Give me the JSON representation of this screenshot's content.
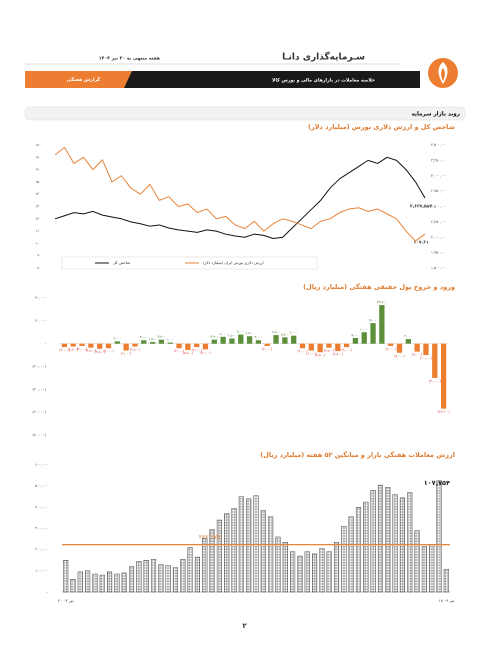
{
  "header": {
    "company": "سـرمایه‌گذاری دانـا",
    "date": "هفته منتهی به ۲۰ تیر ۱۴۰۴",
    "subtitle": "خلاصه معاملات در بازارهای مالی و بورس کالا",
    "tab": "گزارش هفتگی"
  },
  "section_title": "روند بازار سرمایه",
  "chart_data": [
    {
      "type": "line",
      "title": "شاخص کل و ارزش دلاری بورس (میلیارد دلار)",
      "ylim": [
        80,
        180
      ],
      "yticks": [
        {
          "value": 180,
          "label": "۱۸۰"
        },
        {
          "value": 170,
          "label": "۱۷۰"
        },
        {
          "value": 160,
          "label": "۱۶۰"
        },
        {
          "value": 150,
          "label": "۱۵۰"
        },
        {
          "value": 140,
          "label": "۱۴۰"
        },
        {
          "value": 130,
          "label": "۱۳۰"
        },
        {
          "value": 120,
          "label": "۱۲۰"
        },
        {
          "value": 110,
          "label": "۱۱۰"
        },
        {
          "value": 100,
          "label": "۱۰۰"
        },
        {
          "value": 90,
          "label": "۹۰"
        },
        {
          "value": 80,
          "label": "۸۰"
        }
      ],
      "y2lim": [
        1500000,
        3500000
      ],
      "y2ticks": [
        {
          "value": 3500000,
          "label": "۳,۵۰۰,۰۰۰"
        },
        {
          "value": 3250000,
          "label": "۳,۲۵۰,۰۰۰"
        },
        {
          "value": 3000000,
          "label": "۳,۰۰۰,۰۰۰"
        },
        {
          "value": 2750000,
          "label": "۲,۷۵۰,۰۰۰"
        },
        {
          "value": 2500000,
          "label": "۲,۵۰۰,۰۰۰"
        },
        {
          "value": 2250000,
          "label": "۲,۲۵۰,۰۰۰"
        },
        {
          "value": 2000000,
          "label": "۲,۰۰۰,۰۰۰"
        },
        {
          "value": 1750000,
          "label": "۱,۷۵۰,۰۰۰"
        },
        {
          "value": 1500000,
          "label": "۱,۵۰۰,۰۰۰"
        }
      ],
      "grid": false,
      "series": [
        {
          "name": "شاخص کل",
          "color": "#111111",
          "axis": "y2",
          "values": [
            2300000,
            2350000,
            2400000,
            2380000,
            2420000,
            2360000,
            2330000,
            2300000,
            2250000,
            2220000,
            2180000,
            2200000,
            2150000,
            2120000,
            2100000,
            2080000,
            2120000,
            2100000,
            2050000,
            2020000,
            2000000,
            2050000,
            2030000,
            1980000,
            2000000,
            2150000,
            2300000,
            2450000,
            2600000,
            2800000,
            2950000,
            3050000,
            3150000,
            3250000,
            3200000,
            3300000,
            3250000,
            3100000,
            2900000,
            2637582
          ],
          "end_label": "۲,۶۳۷,۵۸۲"
        },
        {
          "name": "ارزش دلاری بورس ایران (میلیارد دلار)",
          "color": "#e8843a",
          "values": [
            172,
            178,
            165,
            170,
            160,
            168,
            150,
            155,
            145,
            140,
            148,
            135,
            138,
            130,
            132,
            125,
            128,
            120,
            122,
            115,
            112,
            118,
            110,
            116,
            120,
            118,
            115,
            112,
            118,
            120,
            125,
            128,
            129,
            126,
            128,
            124,
            120,
            110,
            102,
            107.61
          ],
          "end_label": "۱۰۷.۶۱"
        }
      ]
    },
    {
      "type": "bar",
      "title": "ورود و خروج پول حقیقی هفتگی (میلیارد ریال)",
      "ylim": [
        -80000,
        40000
      ],
      "yticks": [
        {
          "value": 40000,
          "label": "۴۰,۰۰۰"
        },
        {
          "value": 20000,
          "label": "۲۰,۰۰۰"
        },
        {
          "value": 0,
          "label": "-"
        },
        {
          "value": -20000,
          "label": "(۲۰,۰۰۰)"
        },
        {
          "value": -40000,
          "label": "(۴۰,۰۰۰)"
        },
        {
          "value": -60000,
          "label": "(۶۰,۰۰۰)"
        },
        {
          "value": -80000,
          "label": "(۸۰,۰۰۰)"
        }
      ],
      "grid": false,
      "positive_color": "#5b8f3a",
      "negative_color": "#ed7d31",
      "values": [
        -3000,
        -2500,
        -2000,
        -3500,
        -4500,
        -4000,
        2000,
        -6000,
        -2500,
        3000,
        1500,
        3500,
        1000,
        -4000,
        -5500,
        -3000,
        -5000,
        3500,
        6000,
        4500,
        8000,
        6500,
        3000,
        -2000,
        7500,
        5500,
        7000,
        -4000,
        -6000,
        -7500,
        -3500,
        -6500,
        -3000,
        5000,
        10000,
        18000,
        33800,
        -2000,
        -8000,
        4000,
        -7000,
        -10000,
        -30000,
        -56900
      ],
      "value_labels": [
        "(۳,۰۰۰)",
        "(۲,۵۰۰)",
        "(۲,۰۰۰)",
        "(۳,۵۰۰)",
        "(۴,۵۰۰)",
        "(۴,۰۰۰)",
        "۲,۰۰۰",
        "(۶,۰۰۰)",
        "(۲,۵۰۰)",
        "۳,۰۰۰",
        "۱,۵۰۰",
        "۳,۵۰۰",
        "۱,۰۰۰",
        "(۴,۰۰۰)",
        "(۵,۵۰۰)",
        "(۳,۰۰۰)",
        "(۵,۰۰۰)",
        "۳,۵۰۰",
        "۶,۰۰۰",
        "۴,۵۰۰",
        "۸,۰۰۰",
        "۶,۵۰۰",
        "۳,۰۰۰",
        "(۲,۰۰۰)",
        "۷,۵۰۰",
        "۵,۵۰۰",
        "۷,۰۰۰",
        "(۴,۰۰۰)",
        "(۶,۰۰۰)",
        "(۷,۵۰۰)",
        "(۳,۵۰۰)",
        "(۶,۵۰۰)",
        "(۳,۰۰۰)",
        "۵,۰۰۰",
        "۱۰,۰۰۰",
        "۱۸,۰۰۰",
        "۳۳,۸۰۰",
        "(۲,۰۰۰)",
        "(۸,۰۰۰)",
        "۴,۰۰۰",
        "(۷,۰۰۰)",
        "(۱۰,۰۰۰)",
        "(۳۰,۰۰۰)",
        "(۵۶,۹۰۰)"
      ]
    },
    {
      "type": "bar_average",
      "title": "ارزش معاملات هفتگی بازار و میانگین ۵۲ هفته (میلیارد ریال)",
      "ylim": [
        0,
        600000
      ],
      "yticks": [
        {
          "value": 600000,
          "label": "۶۰۰,۰۰۰"
        },
        {
          "value": 500000,
          "label": "۵۰۰,۰۰۰"
        },
        {
          "value": 400000,
          "label": "۴۰۰,۰۰۰"
        },
        {
          "value": 300000,
          "label": "۳۰۰,۰۰۰"
        },
        {
          "value": 200000,
          "label": "۲۰۰,۰۰۰"
        },
        {
          "value": 100000,
          "label": "۱۰۰,۰۰۰"
        },
        {
          "value": 0,
          "label": "-"
        }
      ],
      "grid": false,
      "color": "#222222",
      "average": 223675,
      "average_label": "۲۲۳,۶۷۵",
      "average_color": "#e8843a",
      "end_label": "۱۰۷,۷۵۴",
      "categories": [
        "۲۰ تیر ۰۳",
        null,
        null,
        null,
        null,
        null,
        null,
        null,
        null,
        null,
        null,
        null,
        null,
        null,
        null,
        null,
        null,
        null,
        null,
        null,
        null,
        null,
        null,
        null,
        null,
        null,
        null,
        null,
        null,
        null,
        null,
        null,
        null,
        null,
        null,
        null,
        null,
        null,
        null,
        null,
        null,
        null,
        null,
        null,
        null,
        null,
        null,
        null,
        null,
        null,
        null,
        null,
        "۱۸ تیر ۰۴"
      ],
      "values": [
        150000,
        60000,
        95000,
        100000,
        85000,
        80000,
        95000,
        85000,
        90000,
        120000,
        145000,
        150000,
        155000,
        130000,
        125000,
        115000,
        155000,
        210000,
        165000,
        255000,
        295000,
        340000,
        370000,
        395000,
        450000,
        440000,
        455000,
        385000,
        355000,
        260000,
        235000,
        190000,
        170000,
        190000,
        180000,
        205000,
        190000,
        235000,
        310000,
        355000,
        400000,
        425000,
        480000,
        505000,
        495000,
        460000,
        445000,
        470000,
        290000,
        215000,
        225000,
        525000,
        107754
      ]
    }
  ],
  "page_number": "۲"
}
